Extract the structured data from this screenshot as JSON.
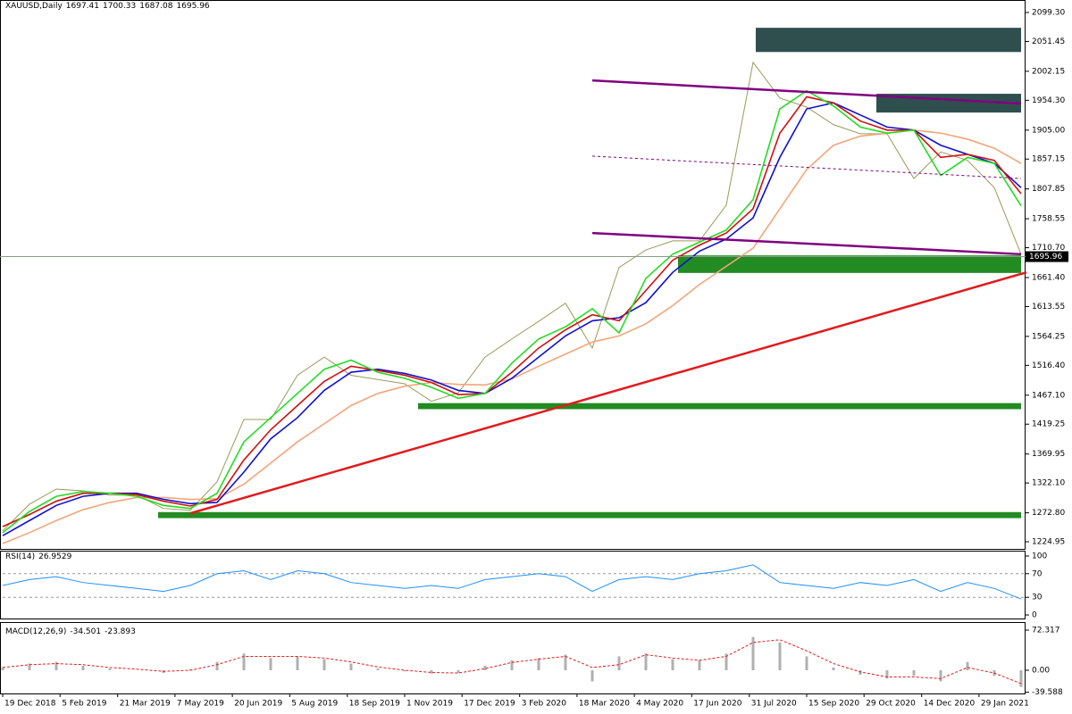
{
  "chart_data": [
    {
      "type": "line",
      "title": "XAUUSD,Daily",
      "ohlc": [
        1697.41,
        1700.33,
        1687.08,
        1695.96
      ],
      "xlim": [
        0,
        38
      ],
      "xticks": [
        {
          "value": 0,
          "label": "19 Dec 2018"
        },
        {
          "value": 2.14,
          "label": "5 Feb 2019"
        },
        {
          "value": 4.29,
          "label": "21 Mar 2019"
        },
        {
          "value": 6.43,
          "label": "7 May 2019"
        },
        {
          "value": 8.57,
          "label": "20 Jun 2019"
        },
        {
          "value": 10.71,
          "label": "5 Aug 2019"
        },
        {
          "value": 12.86,
          "label": "18 Sep 2019"
        },
        {
          "value": 15,
          "label": "1 Nov 2019"
        },
        {
          "value": 17.14,
          "label": "17 Dec 2019"
        },
        {
          "value": 19.29,
          "label": "3 Feb 2020"
        },
        {
          "value": 21.43,
          "label": "18 Mar 2020"
        },
        {
          "value": 23.57,
          "label": "4 May 2020"
        },
        {
          "value": 25.71,
          "label": "17 Jun 2020"
        },
        {
          "value": 27.86,
          "label": "31 Jul 2020"
        },
        {
          "value": 30,
          "label": "15 Sep 2020"
        },
        {
          "value": 32.14,
          "label": "29 Oct 2020"
        },
        {
          "value": 34.29,
          "label": "14 Dec 2020"
        },
        {
          "value": 36.43,
          "label": "29 Jan 2021"
        }
      ],
      "ylim": [
        1213.2,
        2119.9
      ],
      "yticks": [
        {
          "value": 2099.3,
          "label": "2099.30"
        },
        2051.45,
        2002.15,
        {
          "value": 1954.3,
          "label": "1954.30"
        },
        {
          "value": 1905,
          "label": "1905.00"
        },
        1857.15,
        1807.85,
        1758.55,
        {
          "value": 1710.7,
          "label": "1710.70"
        },
        {
          "value": 1661.4,
          "label": "1661.40"
        },
        1613.55,
        1564.25,
        {
          "value": 1516.4,
          "label": "1516.40"
        },
        {
          "value": 1467.1,
          "label": "1467.10"
        },
        1419.25,
        1369.95,
        {
          "value": 1322.1,
          "label": "1322.10"
        },
        {
          "value": 1272.8,
          "label": "1272.80"
        },
        1224.95
      ],
      "series": [
        {
          "color": "#9a9a5a",
          "values": [
            1243,
            1287,
            1312,
            1309,
            1302,
            1302,
            1280,
            1277,
            1324,
            1427,
            1427,
            1500,
            1530,
            1500,
            1493,
            1486,
            1457,
            1471,
            1530,
            1560,
            1589,
            1619,
            1545,
            1678,
            1707,
            1722,
            1722,
            1781,
            2017,
            1958,
            1943,
            1914,
            1899,
            1899,
            1825,
            1869,
            1855,
            1810,
            1700
          ]
        },
        {
          "color": "#f4a57a",
          "values": [
            1222,
            1240,
            1260,
            1278,
            1290,
            1298,
            1298,
            1295,
            1296,
            1320,
            1355,
            1390,
            1420,
            1450,
            1470,
            1482,
            1488,
            1485,
            1484,
            1494,
            1515,
            1535,
            1555,
            1565,
            1585,
            1615,
            1650,
            1680,
            1710,
            1775,
            1840,
            1880,
            1895,
            1900,
            1905,
            1900,
            1890,
            1875,
            1850
          ]
        },
        {
          "color": "#1010d0",
          "values": [
            1235,
            1260,
            1285,
            1300,
            1305,
            1305,
            1295,
            1288,
            1290,
            1340,
            1395,
            1430,
            1475,
            1505,
            1510,
            1503,
            1492,
            1475,
            1470,
            1495,
            1530,
            1565,
            1590,
            1595,
            1620,
            1670,
            1705,
            1725,
            1760,
            1860,
            1940,
            1950,
            1930,
            1910,
            1905,
            1880,
            1865,
            1850,
            1810
          ]
        },
        {
          "color": "#d01010",
          "values": [
            1250,
            1270,
            1292,
            1305,
            1305,
            1303,
            1292,
            1284,
            1295,
            1360,
            1410,
            1450,
            1490,
            1515,
            1508,
            1500,
            1488,
            1468,
            1470,
            1505,
            1545,
            1575,
            1600,
            1590,
            1640,
            1690,
            1715,
            1735,
            1775,
            1900,
            1960,
            1950,
            1920,
            1905,
            1905,
            1860,
            1865,
            1855,
            1800
          ]
        },
        {
          "color": "#22dd22",
          "values": [
            1240,
            1275,
            1300,
            1308,
            1305,
            1300,
            1285,
            1280,
            1305,
            1390,
            1430,
            1470,
            1510,
            1525,
            1505,
            1495,
            1480,
            1462,
            1470,
            1520,
            1560,
            1580,
            1610,
            1570,
            1660,
            1700,
            1720,
            1740,
            1790,
            1940,
            1970,
            1945,
            1910,
            1900,
            1905,
            1830,
            1860,
            1850,
            1780
          ]
        }
      ],
      "zones": [
        {
          "x": [
            28.1,
            38
          ],
          "y": [
            2034,
            2074
          ],
          "color": "#2f4f4f"
        },
        {
          "x": [
            32.6,
            38
          ],
          "y": [
            1934,
            1965
          ],
          "color": "#2f4f4f"
        },
        {
          "x": [
            25.2,
            38
          ],
          "y": [
            1669,
            1698
          ],
          "color": "#228b22"
        },
        {
          "x": [
            15.5,
            38
          ],
          "y": [
            1444,
            1454
          ],
          "color": "#228b22"
        },
        {
          "x": [
            5.8,
            38
          ],
          "y": [
            1264,
            1274
          ],
          "color": "#228b22"
        }
      ],
      "trendlines": [
        {
          "x": [
            7,
            38.2
          ],
          "y": [
            1272,
            1670
          ],
          "color": "#e31a1c",
          "dashed": false
        },
        {
          "x": [
            22,
            38
          ],
          "y": [
            1987,
            1949
          ],
          "color": "#800080",
          "dashed": false
        },
        {
          "x": [
            22,
            38
          ],
          "y": [
            1735,
            1700
          ],
          "color": "#800080",
          "dashed": false
        },
        {
          "x": [
            22,
            38
          ],
          "y": [
            1862,
            1825
          ],
          "color": "#800080",
          "dashed": true
        }
      ]
    },
    {
      "type": "line",
      "title": "RSI(14)",
      "current": 26.9529,
      "color": "#1e90ff",
      "ylim": [
        -6,
        107.5
      ],
      "yticks": [
        100,
        70,
        30,
        0
      ],
      "levels": [
        70,
        30
      ],
      "values": [
        50,
        60,
        65,
        55,
        50,
        45,
        40,
        50,
        70,
        75,
        60,
        75,
        70,
        55,
        50,
        45,
        50,
        45,
        60,
        65,
        70,
        65,
        40,
        60,
        65,
        60,
        70,
        75,
        85,
        55,
        50,
        45,
        55,
        50,
        60,
        40,
        55,
        45,
        27
      ]
    },
    {
      "type": "macd",
      "title": "MACD(12,26,9)",
      "current": [
        -34.501,
        -23.893
      ],
      "ylim": [
        -41.8,
        85.2
      ],
      "yticks": [
        72.317,
        {
          "value": 0,
          "label": "0.00"
        },
        -39.588
      ],
      "series": [
        {
          "color": "#b0b0b0",
          "values": [
            5,
            12,
            15,
            8,
            3,
            0,
            -5,
            2,
            15,
            30,
            22,
            25,
            20,
            12,
            3,
            -2,
            -6,
            -5,
            8,
            18,
            22,
            28,
            -20,
            25,
            30,
            20,
            18,
            30,
            60,
            50,
            25,
            5,
            -8,
            -15,
            -10,
            -20,
            15,
            -10,
            -30
          ]
        },
        {
          "color": "#e31a1c",
          "values": [
            5,
            10,
            12,
            10,
            5,
            2,
            -2,
            0,
            10,
            25,
            25,
            25,
            22,
            15,
            6,
            0,
            -4,
            -5,
            3,
            14,
            20,
            25,
            5,
            10,
            28,
            22,
            18,
            25,
            50,
            55,
            35,
            12,
            -3,
            -12,
            -12,
            -15,
            5,
            -5,
            -24
          ]
        }
      ]
    }
  ]
}
